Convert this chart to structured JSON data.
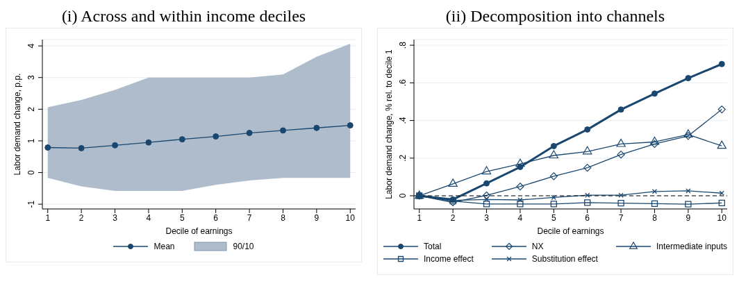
{
  "chart_data": [
    {
      "type": "line",
      "title": "(i) Across and within income deciles",
      "xlabel": "Decile of earnings",
      "ylabel": "Labor demand change, p.p.",
      "x": [
        1,
        2,
        3,
        4,
        5,
        6,
        7,
        8,
        9,
        10
      ],
      "xlim": [
        0.84,
        10.16
      ],
      "xticks": [
        1,
        2,
        3,
        4,
        5,
        6,
        7,
        8,
        9,
        10
      ],
      "ylim": [
        -1.15,
        4.2
      ],
      "yticks": [
        -1,
        0,
        1,
        2,
        3,
        4
      ],
      "grid": "y",
      "legend": "bottom",
      "annotations": [
        "90/10"
      ],
      "series": [
        {
          "name": "Mean",
          "color": "#1a476f",
          "marker": "circle",
          "values": [
            0.79,
            0.77,
            0.86,
            0.95,
            1.05,
            1.14,
            1.25,
            1.33,
            1.41,
            1.49
          ],
          "lower": [
            -0.17,
            -0.44,
            -0.58,
            -0.58,
            -0.58,
            -0.39,
            -0.25,
            -0.17,
            -0.17,
            -0.17
          ],
          "upper": [
            2.06,
            2.29,
            2.61,
            3.0,
            3.0,
            3.0,
            3.0,
            3.1,
            3.66,
            4.07
          ]
        }
      ]
    },
    {
      "type": "line",
      "title": "(ii) Decomposition into channels",
      "xlabel": "Decile of earnings",
      "ylabel": "Labor demand change, % rel. to decile 1",
      "x": [
        1,
        2,
        3,
        4,
        5,
        6,
        7,
        8,
        9,
        10
      ],
      "xlim": [
        0.84,
        10.16
      ],
      "xticks": [
        1,
        2,
        3,
        4,
        5,
        6,
        7,
        8,
        9,
        10
      ],
      "ylim": [
        -0.07,
        0.83
      ],
      "yticks": [
        0,
        {
          "value": 0.2,
          "label": ".2"
        },
        {
          "value": 0.4,
          "label": ".4"
        },
        {
          "value": 0.6,
          "label": ".6"
        },
        {
          "value": 0.8,
          "label": ".8"
        }
      ],
      "grid": "y",
      "legend": "bottom",
      "ref_lines": [
        {
          "axis": "y",
          "value": 0,
          "color": "#000000",
          "line_style": "dashed"
        }
      ],
      "series": [
        {
          "name": "Total",
          "color": "#1a476f",
          "marker": "circle",
          "values": [
            0,
            -0.02,
            0.066,
            0.153,
            0.264,
            0.352,
            0.458,
            0.543,
            0.625,
            0.7
          ]
        },
        {
          "name": "NX",
          "color": "#1a476f",
          "marker": "diamond",
          "values": [
            0,
            -0.035,
            0.002,
            0.049,
            0.104,
            0.149,
            0.219,
            0.275,
            0.318,
            0.459
          ]
        },
        {
          "name": "Intermediate inputs",
          "color": "#1a476f",
          "marker": "triangle",
          "values": [
            0,
            0.063,
            0.129,
            0.169,
            0.214,
            0.235,
            0.275,
            0.286,
            0.325,
            0.265
          ]
        },
        {
          "name": "Income effect",
          "color": "#1a476f",
          "marker": "square",
          "values": [
            0,
            -0.028,
            -0.044,
            -0.044,
            -0.044,
            -0.036,
            -0.039,
            -0.042,
            -0.045,
            -0.038
          ]
        },
        {
          "name": "Substitution effect",
          "color": "#1a476f",
          "marker": "cross",
          "values": [
            0,
            -0.024,
            -0.02,
            -0.022,
            -0.009,
            0.003,
            0.003,
            0.023,
            0.026,
            0.014
          ]
        }
      ]
    }
  ]
}
